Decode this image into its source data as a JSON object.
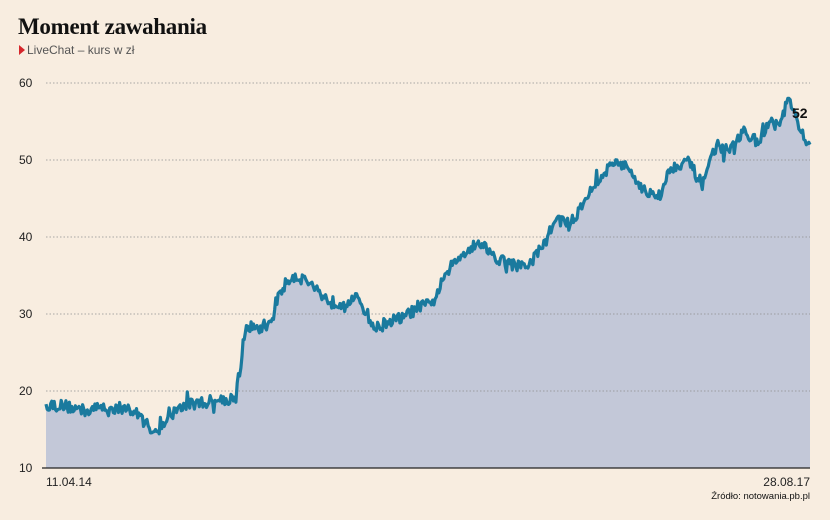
{
  "chart_data": {
    "type": "area",
    "title": "Moment zawahania",
    "subtitle": "LiveChat – kurs w zł",
    "source": "Źródło: notowania.pb.pl",
    "ylim": [
      10,
      60
    ],
    "yticks": [
      "10",
      "20",
      "30",
      "40",
      "50",
      "60"
    ],
    "xticks": [
      "11.04.14",
      "28.08.17"
    ],
    "end_label": "52",
    "grid": true,
    "colors": {
      "line": "#1a7a9e",
      "fill": "#c3c8d8",
      "grid": "#8f8f8f",
      "marker": "#d6262b"
    },
    "x": [
      "2014-04-11",
      "2014-05-15",
      "2014-06-15",
      "2014-07-05",
      "2014-07-25",
      "2014-08-20",
      "2014-09-10",
      "2014-09-25",
      "2014-10-05",
      "2014-10-15",
      "2014-11-10",
      "2014-12-05",
      "2015-01-15",
      "2015-02-10",
      "2015-02-20",
      "2015-03-01",
      "2015-03-20",
      "2015-04-10",
      "2015-04-25",
      "2015-05-15",
      "2015-06-05",
      "2015-06-25",
      "2015-07-15",
      "2015-08-05",
      "2015-08-30",
      "2015-09-25",
      "2015-10-15",
      "2015-11-10",
      "2015-12-05",
      "2015-12-25",
      "2016-01-20",
      "2016-02-15",
      "2016-03-10",
      "2016-04-05",
      "2016-04-30",
      "2016-05-25",
      "2016-06-20",
      "2016-07-15",
      "2016-08-05",
      "2016-08-30",
      "2016-09-25",
      "2016-10-20",
      "2016-11-10",
      "2016-12-05",
      "2016-12-25",
      "2017-01-15",
      "2017-02-10",
      "2017-03-05",
      "2017-03-30",
      "2017-04-20",
      "2017-05-15",
      "2017-06-05",
      "2017-06-25",
      "2017-07-10",
      "2017-07-25",
      "2017-08-10",
      "2017-08-28"
    ],
    "series": [
      {
        "values": [
          18.3,
          18.0,
          17.4,
          17.8,
          17.9,
          17.6,
          16.8,
          15.2,
          15.0,
          15.1,
          17.8,
          18.4,
          18.8,
          19.2,
          23.0,
          28.5,
          28.0,
          29.0,
          33.0,
          35.0,
          34.5,
          33.0,
          31.5,
          31.5,
          32.0,
          28.0,
          29.0,
          29.5,
          31.0,
          31.2,
          35.5,
          38.0,
          39.5,
          37.5,
          36.5,
          36.0,
          38.5,
          42.5,
          41.5,
          45.0,
          48.0,
          50.0,
          48.5,
          46.0,
          45.0,
          49.0,
          50.0,
          47.0,
          52.0,
          51.0,
          54.0,
          52.0,
          55.0,
          54.5,
          58.0,
          54.0,
          52.0
        ]
      }
    ]
  }
}
